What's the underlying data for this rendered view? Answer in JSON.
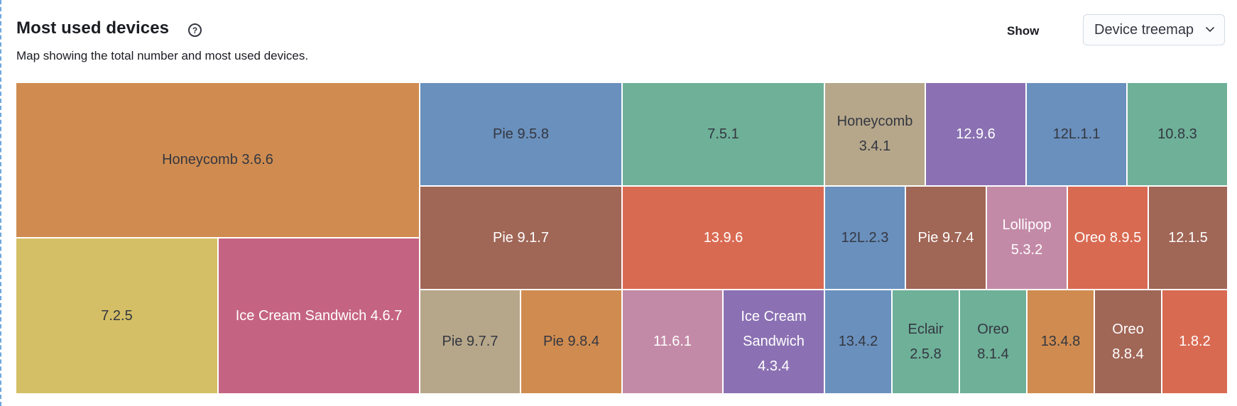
{
  "panel": {
    "title": "Most used devices",
    "help_icon": "question-circle-icon",
    "subtitle": "Map showing the total number and most used devices.",
    "show_label": "Show",
    "view_select": {
      "value": "Device treemap",
      "icon": "chevron-down-icon"
    }
  },
  "chart_data": {
    "type": "treemap",
    "colors": {
      "orange": "#d08c50",
      "yellow": "#d4bf66",
      "pink": "#c56482",
      "blue": "#6a90bd",
      "green": "#6eb098",
      "tan": "#b6a78a",
      "purple": "#8b71b3",
      "brown": "#a06656",
      "red": "#d96a52",
      "lightpink": "#c38aa7"
    },
    "cells": [
      {
        "label": "Honeycomb 3.6.6",
        "color": "#d08c50",
        "text_color": "#343741"
      },
      {
        "label": "7.2.5",
        "color": "#d4bf66",
        "text_color": "#343741"
      },
      {
        "label": "Ice Cream Sandwich 4.6.7",
        "color": "#c56482",
        "text_color": "#ffffff"
      },
      {
        "label": "Pie 9.5.8",
        "color": "#6a90bd",
        "text_color": "#343741"
      },
      {
        "label": "7.5.1",
        "color": "#6eb098",
        "text_color": "#343741"
      },
      {
        "label": "Honeycomb 3.4.1",
        "color": "#b6a78a",
        "text_color": "#343741"
      },
      {
        "label": "12.9.6",
        "color": "#8b71b3",
        "text_color": "#ffffff"
      },
      {
        "label": "12L.1.1",
        "color": "#6a90bd",
        "text_color": "#343741"
      },
      {
        "label": "10.8.3",
        "color": "#6eb098",
        "text_color": "#343741"
      },
      {
        "label": "Pie 9.1.7",
        "color": "#a06656",
        "text_color": "#ffffff"
      },
      {
        "label": "13.9.6",
        "color": "#d96a52",
        "text_color": "#ffffff"
      },
      {
        "label": "12L.2.3",
        "color": "#6a90bd",
        "text_color": "#343741"
      },
      {
        "label": "Pie 9.7.4",
        "color": "#a06656",
        "text_color": "#ffffff"
      },
      {
        "label": "Lollipop 5.3.2",
        "color": "#c38aa7",
        "text_color": "#ffffff"
      },
      {
        "label": "Oreo 8.9.5",
        "color": "#d96a52",
        "text_color": "#ffffff"
      },
      {
        "label": "12.1.5",
        "color": "#a06656",
        "text_color": "#ffffff"
      },
      {
        "label": "Pie 9.7.7",
        "color": "#b6a78a",
        "text_color": "#343741"
      },
      {
        "label": "Pie 9.8.4",
        "color": "#d08c50",
        "text_color": "#343741"
      },
      {
        "label": "11.6.1",
        "color": "#c38aa7",
        "text_color": "#ffffff"
      },
      {
        "label": "Ice Cream Sandwich 4.3.4",
        "color": "#8b71b3",
        "text_color": "#ffffff"
      },
      {
        "label": "13.4.2",
        "color": "#6a90bd",
        "text_color": "#343741"
      },
      {
        "label": "Eclair 2.5.8",
        "color": "#6eb098",
        "text_color": "#343741"
      },
      {
        "label": "Oreo 8.1.4",
        "color": "#6eb098",
        "text_color": "#343741"
      },
      {
        "label": "13.4.8",
        "color": "#d08c50",
        "text_color": "#343741"
      },
      {
        "label": "Oreo 8.8.4",
        "color": "#a06656",
        "text_color": "#ffffff"
      },
      {
        "label": "1.8.2",
        "color": "#d96a52",
        "text_color": "#ffffff"
      }
    ]
  }
}
